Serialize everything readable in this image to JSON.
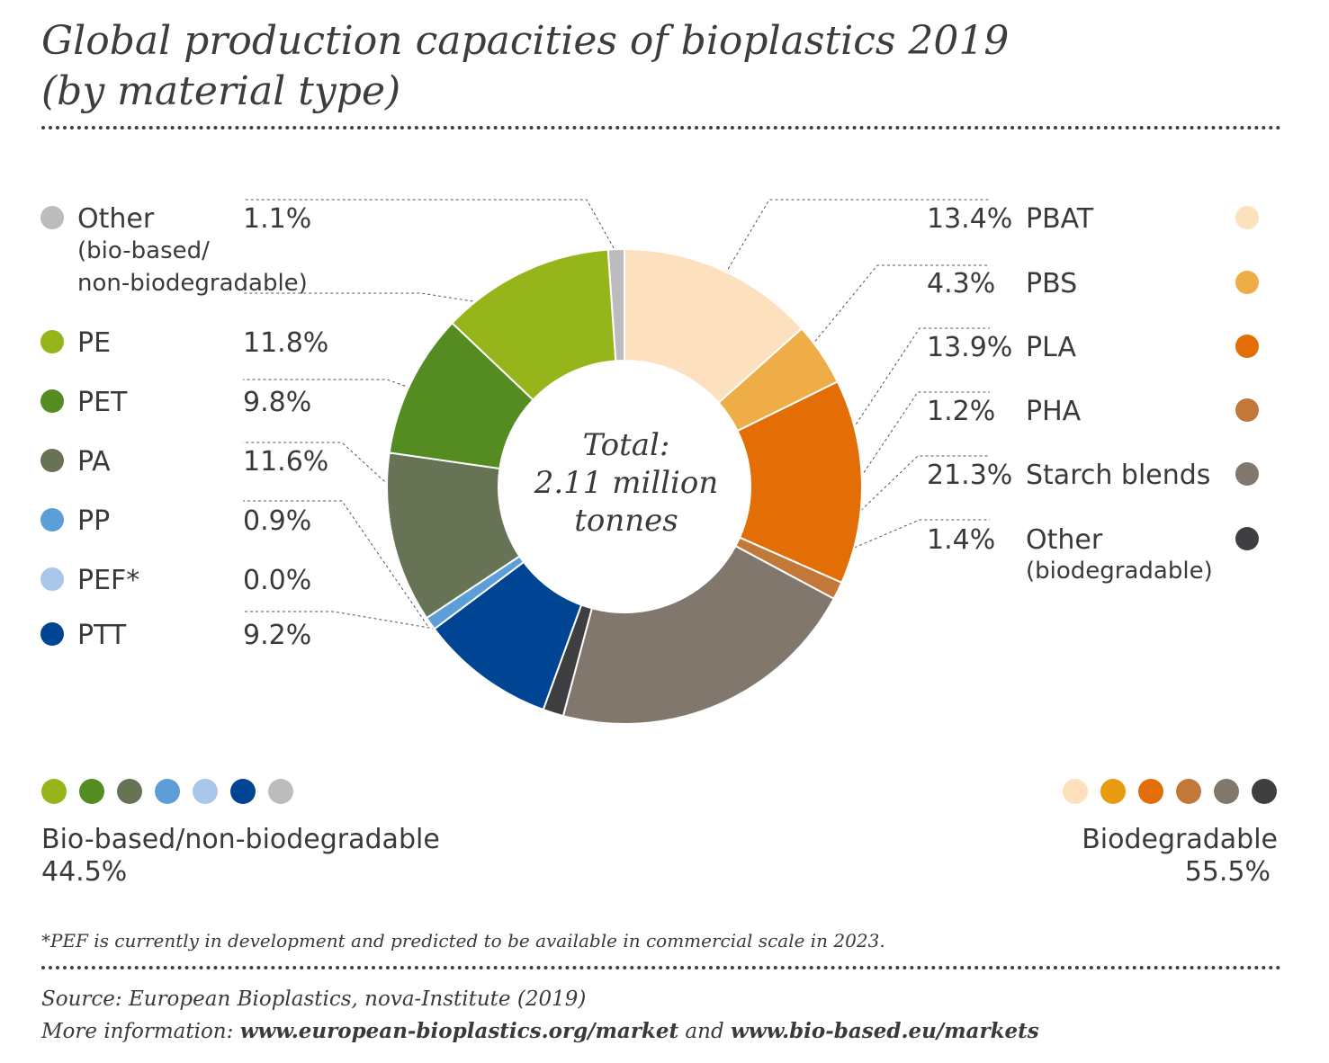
{
  "title_line1": "Global production capacities of bioplastics 2019",
  "title_line2": "(by material type)",
  "chart_data": {
    "type": "pie",
    "donut": true,
    "center_label": [
      "Total:",
      "2.11 million",
      "tonnes"
    ],
    "slices": [
      {
        "label": "PBAT",
        "value": 13.4,
        "pct": "13.4%",
        "color": "#fde0be",
        "group": "biodegradable"
      },
      {
        "label": "PBS",
        "value": 4.3,
        "pct": "4.3%",
        "color": "#efad48",
        "group": "biodegradable"
      },
      {
        "label": "PLA",
        "value": 13.9,
        "pct": "13.9%",
        "color": "#e36e06",
        "group": "biodegradable"
      },
      {
        "label": "PHA",
        "value": 1.2,
        "pct": "1.2%",
        "color": "#c27838",
        "group": "biodegradable"
      },
      {
        "label": "Starch blends",
        "value": 21.3,
        "pct": "21.3%",
        "color": "#82776d",
        "group": "biodegradable"
      },
      {
        "label": "Other",
        "sublabel": "(biodegradable)",
        "value": 1.4,
        "pct": "1.4%",
        "color": "#3f3f41",
        "group": "biodegradable"
      },
      {
        "label": "PTT",
        "value": 9.2,
        "pct": "9.2%",
        "color": "#004593",
        "group": "bio-based"
      },
      {
        "label": "PEF*",
        "value": 0.0,
        "pct": "0.0%",
        "color": "#a9c7ea",
        "group": "bio-based"
      },
      {
        "label": "PP",
        "value": 0.9,
        "pct": "0.9%",
        "color": "#5c9fd8",
        "group": "bio-based"
      },
      {
        "label": "PA",
        "value": 11.6,
        "pct": "11.6%",
        "color": "#667355",
        "group": "bio-based"
      },
      {
        "label": "PET",
        "value": 9.8,
        "pct": "9.8%",
        "color": "#558c22",
        "group": "bio-based"
      },
      {
        "label": "PE",
        "value": 11.8,
        "pct": "11.8%",
        "color": "#95b51a",
        "group": "bio-based"
      },
      {
        "label": "Other",
        "sublabel": "(bio-based/\nnon-biodegradable)",
        "value": 1.1,
        "pct": "1.1%",
        "color": "#bcbcbc",
        "group": "bio-based"
      }
    ]
  },
  "groups": {
    "biobased": {
      "label": "Bio-based/non-biodegradable",
      "pct": "44.5%",
      "colors": [
        "#95b51a",
        "#558c22",
        "#667355",
        "#5c9fd8",
        "#a9c7ea",
        "#004593",
        "#bcbcbc"
      ]
    },
    "biodegradable": {
      "label": "Biodegradable",
      "pct": "55.5%",
      "colors": [
        "#fde0be",
        "#e99a0f",
        "#e36e06",
        "#c27838",
        "#82776d",
        "#3f3f41"
      ]
    }
  },
  "footnote": "*PEF is currently in development and predicted to be available in commercial scale in 2023.",
  "source": "Source: European Bioplastics, nova-Institute (2019)",
  "more_info": {
    "prefix": "More information: ",
    "link1": "www.european-bioplastics.org/market",
    "joiner": " and ",
    "link2": "www.bio-based.eu/markets"
  }
}
